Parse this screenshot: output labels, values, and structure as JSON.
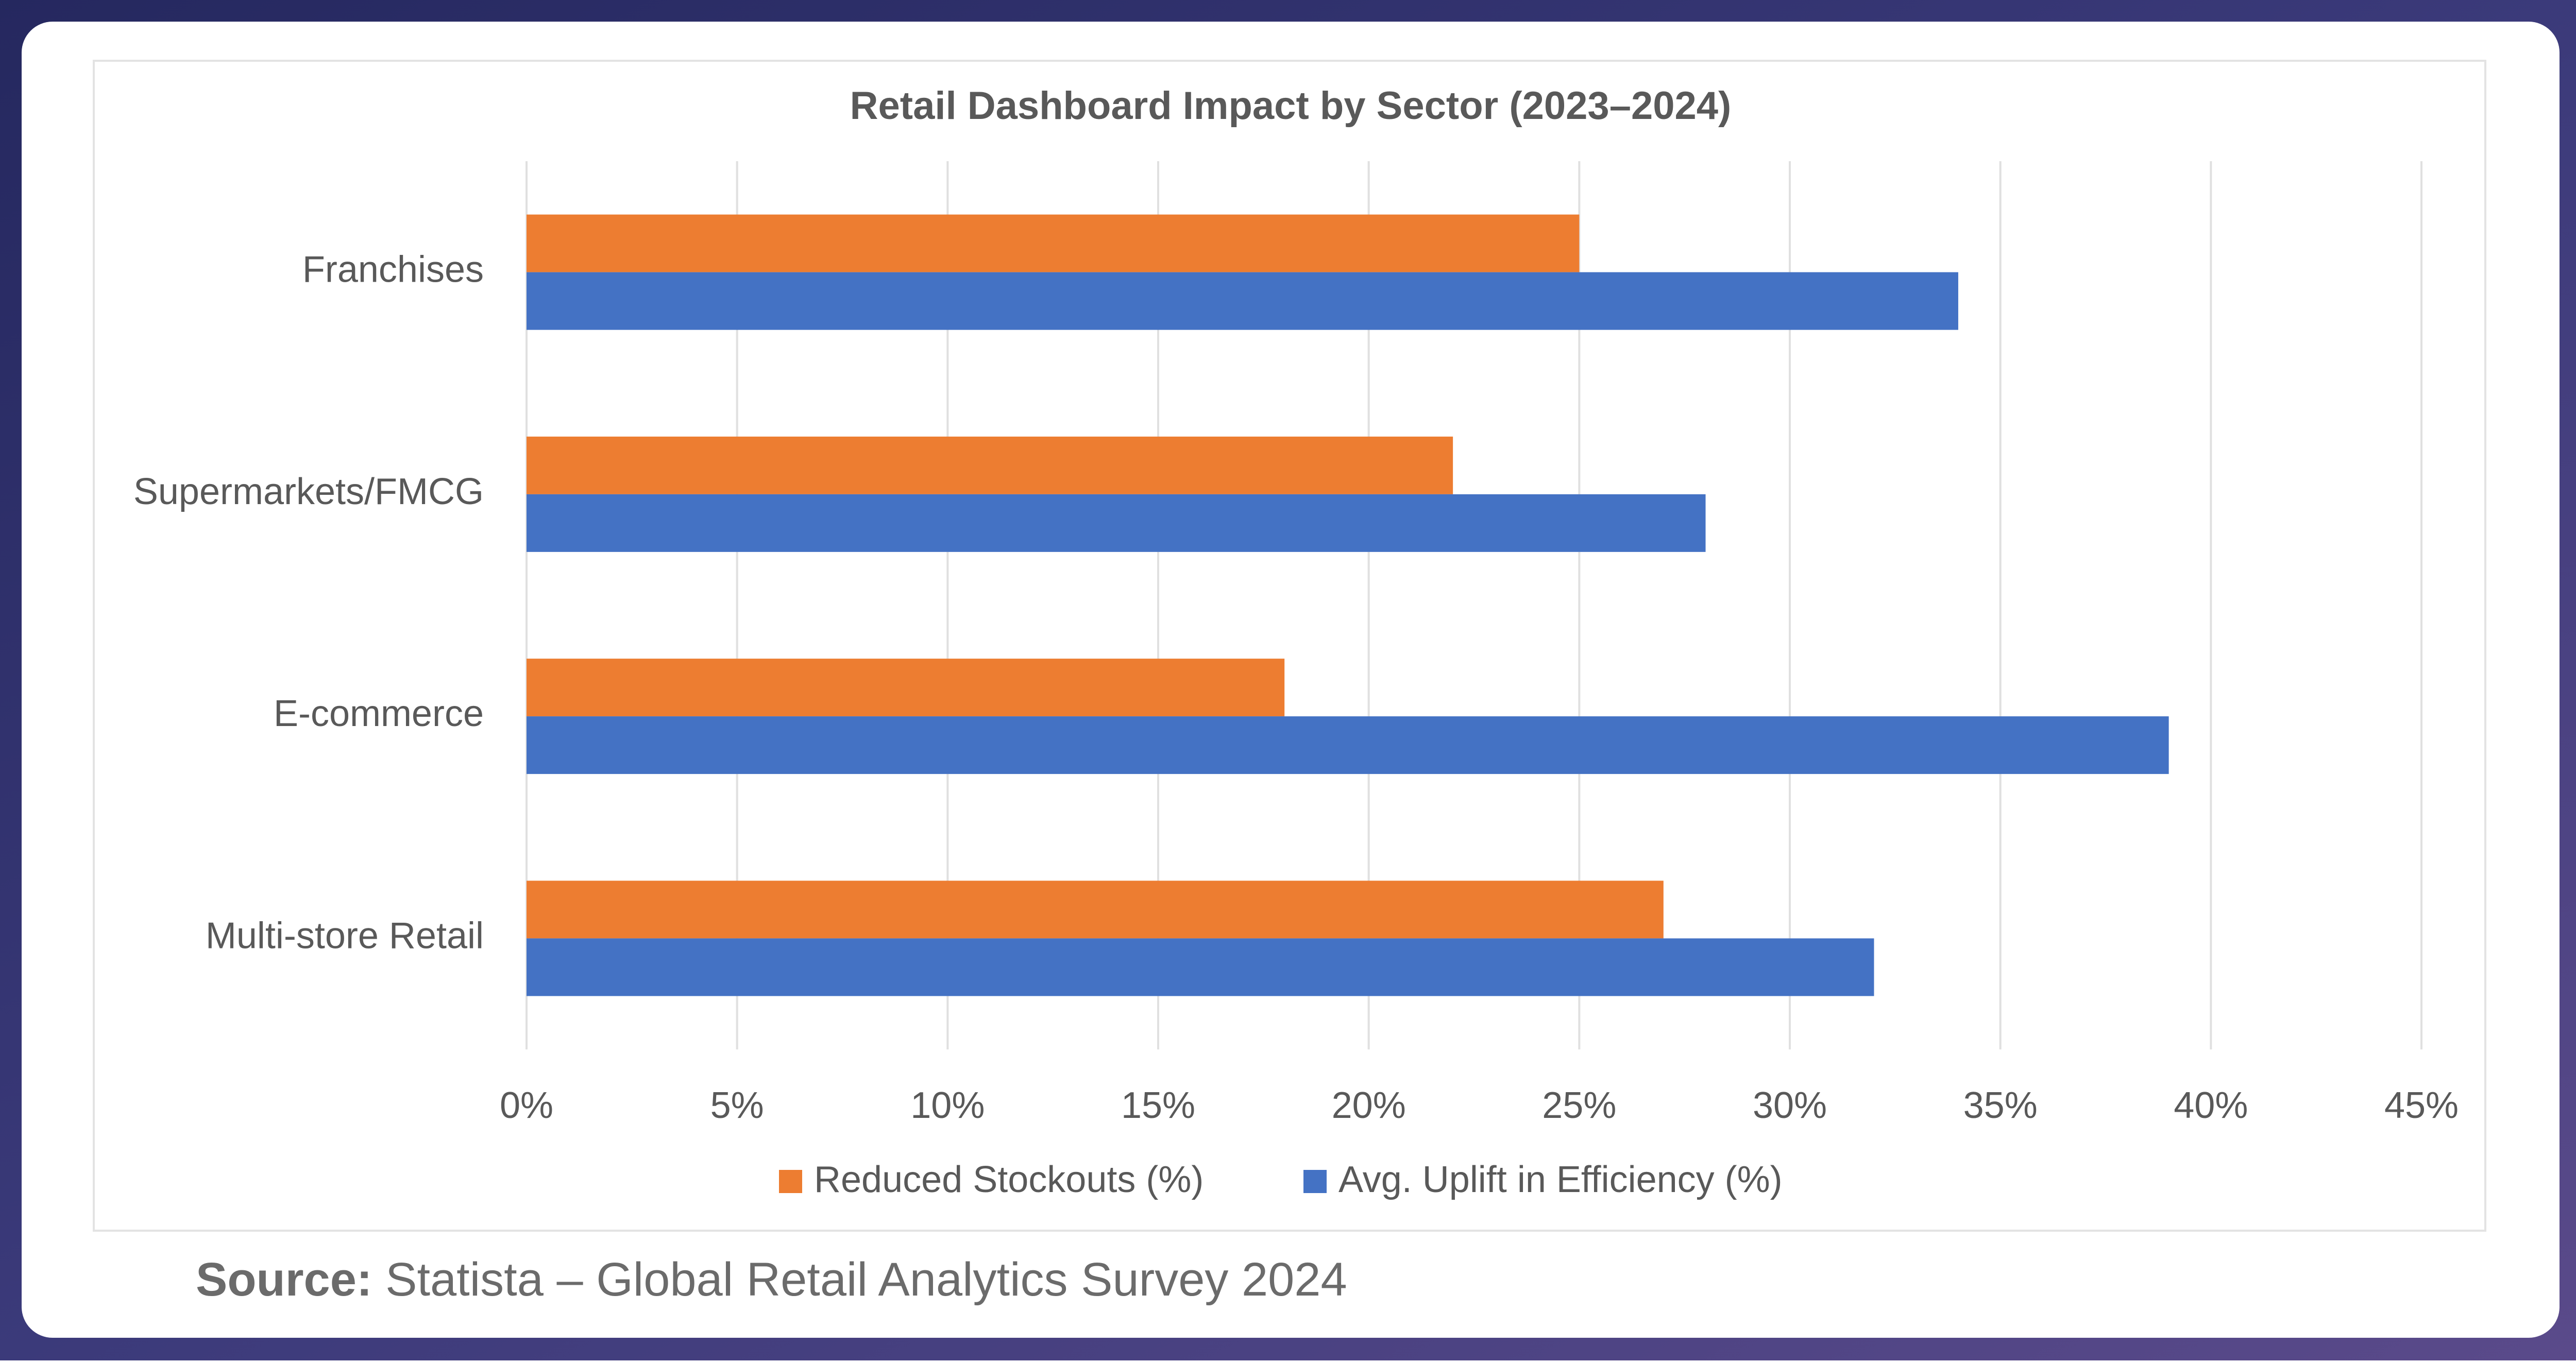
{
  "chart_data": {
    "type": "hbar",
    "title": "Retail Dashboard Impact by Sector (2023–2024)",
    "categories": [
      "Franchises",
      "Supermarkets/FMCG",
      "E-commerce",
      "Multi-store Retail"
    ],
    "series": [
      {
        "name": "Reduced Stockouts (%)",
        "color": "#ed7d31",
        "values": [
          25,
          22,
          18,
          27
        ]
      },
      {
        "name": "Avg. Uplift in Efficiency (%)",
        "color": "#4472c4",
        "values": [
          34,
          28,
          39,
          32
        ]
      }
    ],
    "xlim": [
      0,
      45
    ],
    "xticks": [
      {
        "value": 0,
        "label": "0%"
      },
      {
        "value": 5,
        "label": "5%"
      },
      {
        "value": 10,
        "label": "10%"
      },
      {
        "value": 15,
        "label": "15%"
      },
      {
        "value": 20,
        "label": "20%"
      },
      {
        "value": 25,
        "label": "25%"
      },
      {
        "value": 30,
        "label": "30%"
      },
      {
        "value": 35,
        "label": "35%"
      },
      {
        "value": 40,
        "label": "40%"
      },
      {
        "value": 45,
        "label": "45%"
      }
    ],
    "grid": true,
    "legend": "bottom"
  },
  "source": {
    "label": "Source:",
    "text": "Statista – Global Retail Analytics Survey 2024"
  }
}
